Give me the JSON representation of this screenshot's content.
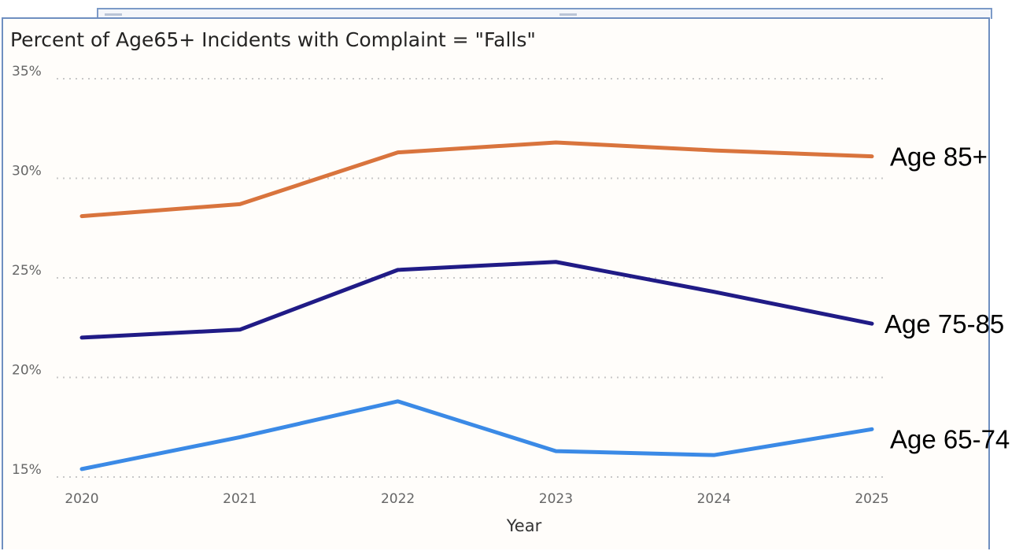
{
  "chart_data": {
    "type": "line",
    "title": "Percent of Age65+ Incidents with Complaint = \"Falls\"",
    "xlabel": "Year",
    "ylabel": "",
    "categories": [
      "2020",
      "2021",
      "2022",
      "2023",
      "2024",
      "2025"
    ],
    "ylim": [
      15,
      35
    ],
    "yticks": [
      "15%",
      "20%",
      "25%",
      "30%",
      "35%"
    ],
    "grid": true,
    "series": [
      {
        "name": "Age 85+",
        "color": "#d9743d",
        "values": [
          28.1,
          28.7,
          31.3,
          31.8,
          31.4,
          31.1
        ]
      },
      {
        "name": "Age 75-85",
        "color": "#201b86",
        "values": [
          22.0,
          22.4,
          25.4,
          25.8,
          24.3,
          22.7
        ]
      },
      {
        "name": "Age 65-74",
        "color": "#3b8ae6",
        "values": [
          15.4,
          17.0,
          18.8,
          16.3,
          16.1,
          17.4
        ]
      }
    ]
  }
}
